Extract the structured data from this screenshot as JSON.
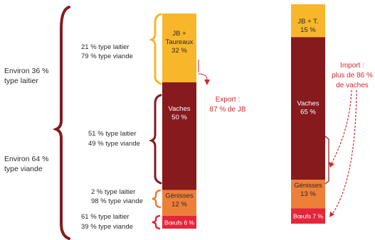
{
  "colors": {
    "jb": "#F8B62B",
    "vaches": "#861A1D",
    "genisses": "#EE7F39",
    "boeufs": "#E4263B",
    "text_dark": "#2b2b2b",
    "text_red": "#D6272F",
    "brace_red": "#861A1D",
    "brace_yellow": "#F8B62B",
    "brace_orange": "#EE7F39",
    "brace_pink": "#E4263B"
  },
  "left_summary": [
    {
      "lines": [
        "Environ 36 %",
        "type laitier"
      ]
    },
    {
      "lines": [
        "Environ 64 %",
        "type viande"
      ]
    }
  ],
  "bar_left": {
    "segments": [
      {
        "key": "jb",
        "lines": [
          "JB +",
          "Taureaux",
          "32 %"
        ],
        "value": 32
      },
      {
        "key": "vaches",
        "lines": [
          "Vaches",
          "50 %"
        ],
        "value": 50
      },
      {
        "key": "genisses",
        "lines": [
          "Génisses",
          "12 %"
        ],
        "value": 12
      },
      {
        "key": "boeufs",
        "lines": [
          "Bœufs 6 %"
        ],
        "value": 6
      }
    ]
  },
  "bar_right": {
    "segments": [
      {
        "key": "jb",
        "lines": [
          "JB + T.",
          "15 %"
        ],
        "value": 15
      },
      {
        "key": "vaches",
        "lines": [
          "Vaches",
          "65 %"
        ],
        "value": 65
      },
      {
        "key": "genisses",
        "lines": [
          "Génisses",
          "13 %"
        ],
        "value": 13
      },
      {
        "key": "boeufs",
        "lines": [
          "Bœufs 7 %"
        ],
        "value": 7
      }
    ]
  },
  "type_labels": [
    {
      "lines": [
        "21 % type laitier",
        "79 % type viande"
      ]
    },
    {
      "lines": [
        "51 % type laitier",
        "49 % type viande"
      ]
    },
    {
      "lines": [
        "2 % type laitier",
        "98 % type viande"
      ]
    },
    {
      "lines": [
        "61 % type laitier",
        "39 % type viande"
      ]
    }
  ],
  "export_label": {
    "lines": [
      "Export :",
      "87 % de JB"
    ]
  },
  "import_label": {
    "lines": [
      "Import :",
      "plus de 86 %",
      "de vaches"
    ]
  }
}
